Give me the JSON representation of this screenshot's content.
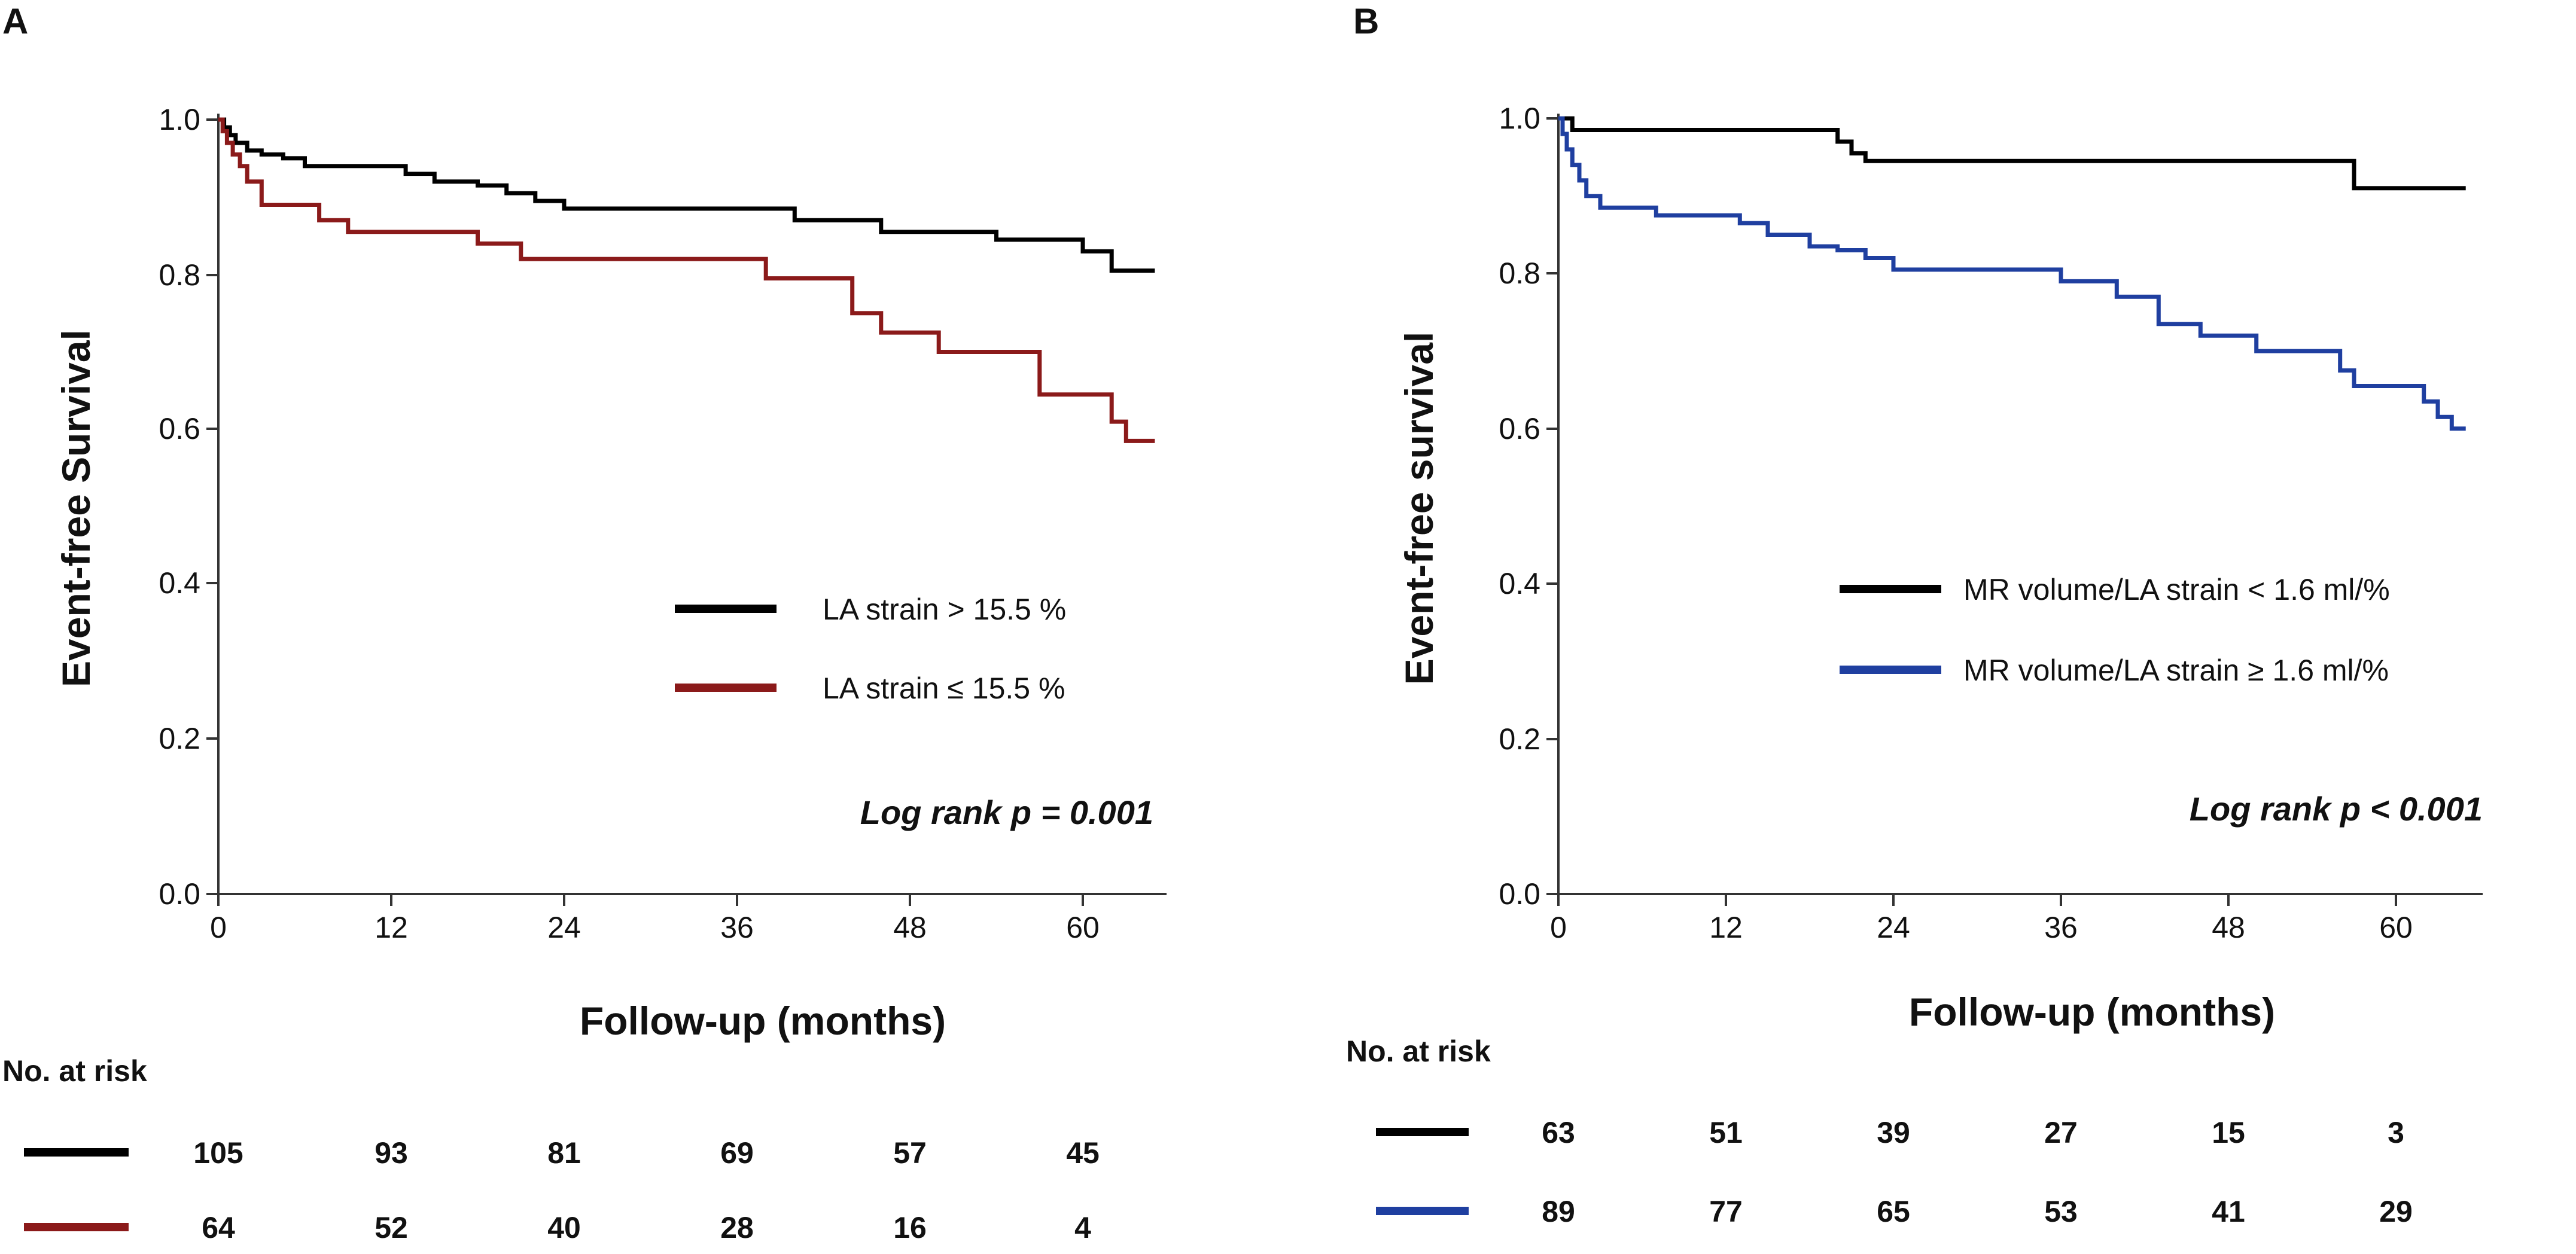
{
  "chart_data": [
    {
      "type": "line",
      "subtype": "kaplan-meier",
      "panel": "A",
      "xlabel": "Follow-up (months)",
      "ylabel": "Event-free Survival",
      "xlim": [
        0,
        65
      ],
      "ylim": [
        0,
        1
      ],
      "xticks": [
        "0",
        "12",
        "24",
        "36",
        "48",
        "60"
      ],
      "yticks": [
        "0.0",
        "0.2",
        "0.4",
        "0.6",
        "0.8",
        "1.0"
      ],
      "annotation": "Log rank p = 0.001",
      "risk_header": "No. at risk",
      "series": [
        {
          "name": "LA strain > 15.5 %",
          "color": "#000000",
          "x": [
            0,
            0.4,
            0.8,
            1.2,
            2,
            3,
            4.5,
            6,
            13,
            15,
            18,
            20,
            22,
            24,
            40,
            46,
            54,
            60,
            62,
            65
          ],
          "y": [
            1.0,
            0.99,
            0.98,
            0.97,
            0.96,
            0.955,
            0.95,
            0.94,
            0.93,
            0.92,
            0.915,
            0.905,
            0.895,
            0.885,
            0.87,
            0.855,
            0.845,
            0.83,
            0.805,
            0.805
          ],
          "at_risk": [
            "105",
            "93",
            "81",
            "69",
            "57",
            "45"
          ]
        },
        {
          "name": "LA strain ≤ 15.5 %",
          "color": "#8b1a1a",
          "x": [
            0,
            0.3,
            0.6,
            1,
            1.5,
            2,
            3,
            7,
            9,
            18,
            21,
            38,
            44,
            46,
            50,
            57,
            62,
            63,
            65
          ],
          "y": [
            1.0,
            0.985,
            0.97,
            0.955,
            0.94,
            0.92,
            0.89,
            0.87,
            0.855,
            0.84,
            0.82,
            0.795,
            0.75,
            0.725,
            0.7,
            0.645,
            0.61,
            0.585,
            0.585
          ],
          "at_risk": [
            "64",
            "52",
            "40",
            "28",
            "16",
            "4"
          ]
        }
      ]
    },
    {
      "type": "line",
      "subtype": "kaplan-meier",
      "panel": "B",
      "xlabel": "Follow-up (months)",
      "ylabel": "Event-free survival",
      "xlim": [
        0,
        65
      ],
      "ylim": [
        0,
        1
      ],
      "xticks": [
        "0",
        "12",
        "24",
        "36",
        "48",
        "60"
      ],
      "yticks": [
        "0.0",
        "0.2",
        "0.4",
        "0.6",
        "0.8",
        "1.0"
      ],
      "annotation": "Log rank p < 0.001",
      "risk_header": "No. at risk",
      "series": [
        {
          "name": "MR volume/LA strain < 1.6 ml/%",
          "color": "#000000",
          "x": [
            0,
            1,
            20,
            21,
            22,
            57,
            65
          ],
          "y": [
            1.0,
            0.985,
            0.97,
            0.955,
            0.945,
            0.91,
            0.91
          ],
          "at_risk": [
            "63",
            "51",
            "39",
            "27",
            "15",
            "3"
          ]
        },
        {
          "name": "MR volume/LA strain ≥ 1.6 ml/%",
          "color": "#1f3fa0",
          "x": [
            0,
            0.3,
            0.6,
            1,
            1.5,
            2,
            3,
            7,
            13,
            15,
            18,
            20,
            22,
            24,
            36,
            40,
            43,
            46,
            50,
            56,
            57,
            62,
            63,
            64,
            65
          ],
          "y": [
            1.0,
            0.98,
            0.96,
            0.94,
            0.92,
            0.9,
            0.885,
            0.875,
            0.865,
            0.85,
            0.835,
            0.83,
            0.82,
            0.805,
            0.79,
            0.77,
            0.735,
            0.72,
            0.7,
            0.675,
            0.655,
            0.635,
            0.615,
            0.6,
            0.6
          ],
          "at_risk": [
            "89",
            "77",
            "65",
            "53",
            "41",
            "29"
          ]
        }
      ]
    }
  ]
}
